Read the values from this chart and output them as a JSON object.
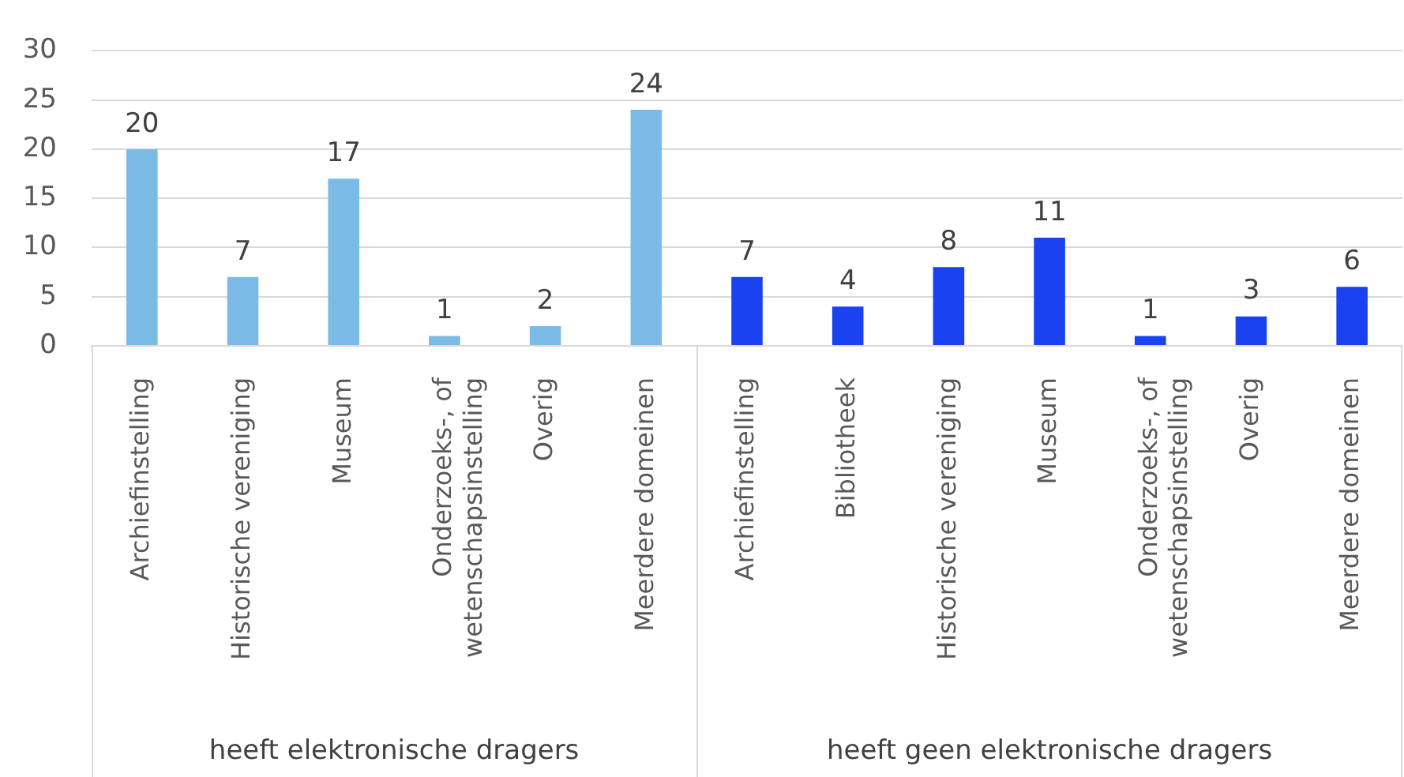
{
  "chart_data": {
    "type": "bar",
    "categories": [
      "Archiefinstelling",
      "Historische vereniging",
      "Museum",
      "Onderzoeks-, of wetenschapsinstelling",
      "Overig",
      "Meerdere domeinen",
      "Archiefinstelling",
      "Bibliotheek",
      "Historische vereniging",
      "Museum",
      "Onderzoeks-, of wetenschapsinstelling",
      "Overig",
      "Meerdere domeinen"
    ],
    "series": [
      {
        "color": "#7cbbe6",
        "values": [
          20,
          7,
          17,
          1,
          2,
          24,
          null,
          null,
          null,
          null,
          null,
          null,
          null
        ]
      },
      {
        "color": "#1b42f0",
        "values": [
          null,
          null,
          null,
          null,
          null,
          null,
          7,
          4,
          8,
          11,
          1,
          3,
          6
        ]
      }
    ],
    "annotations": [
      "heeft elektronische dragers",
      "heeft geen elektronische dragers"
    ],
    "ylim": [
      0,
      30
    ],
    "yticks": [
      0,
      5,
      10,
      15,
      20,
      25,
      30
    ],
    "grid": "y",
    "data_labels": true
  }
}
